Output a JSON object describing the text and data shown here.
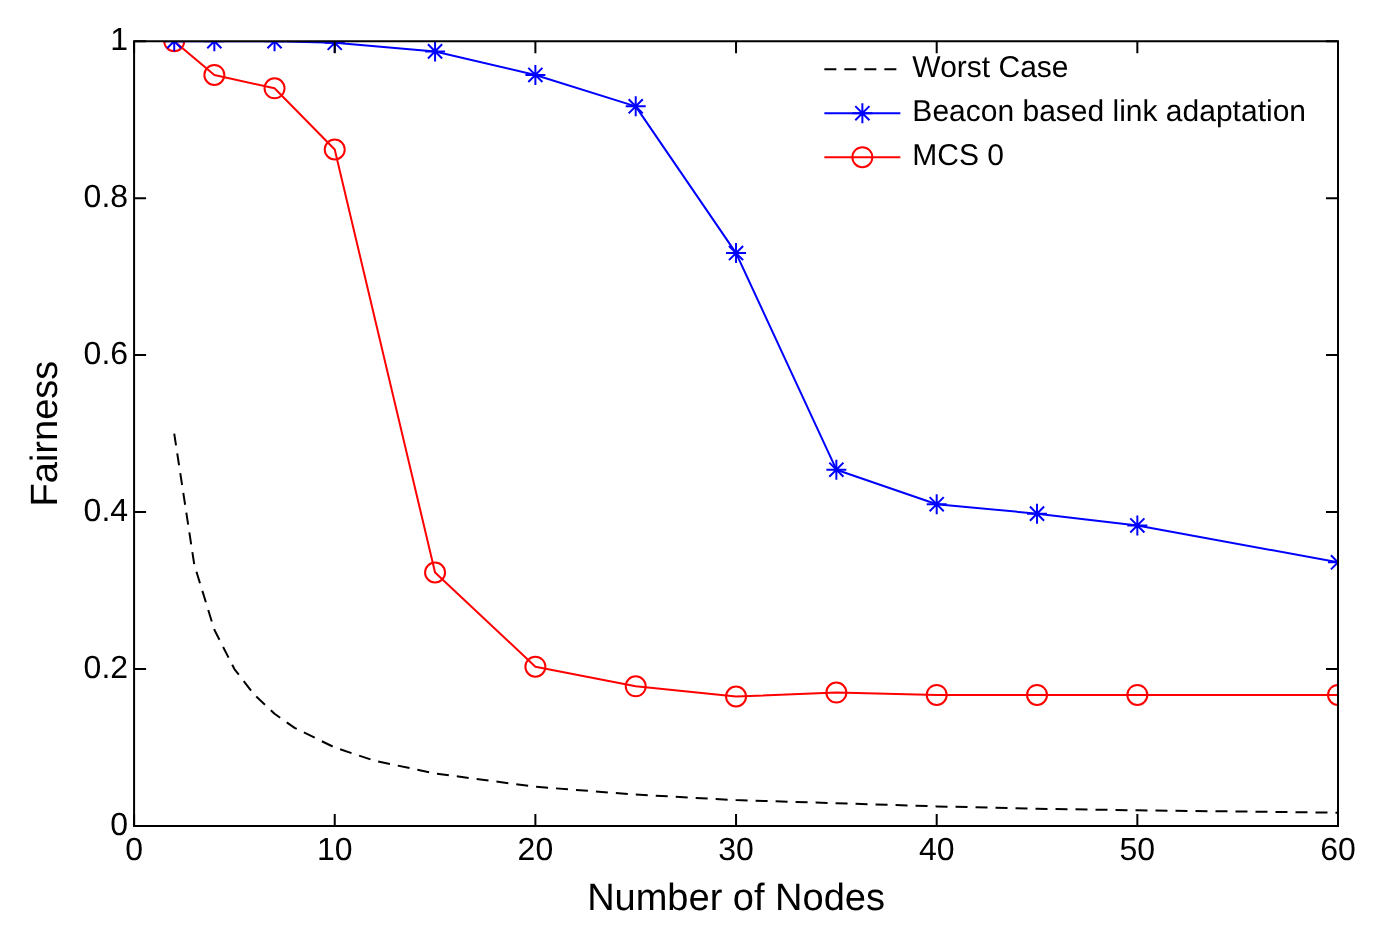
{
  "chart_data": {
    "type": "line",
    "xlabel": "Number of Nodes",
    "ylabel": "Fairness",
    "xlim": [
      0,
      60
    ],
    "xticks": [
      0,
      10,
      20,
      30,
      40,
      50,
      60
    ],
    "ylim": [
      0,
      1
    ],
    "yticks": [
      0,
      0.2,
      0.4,
      0.6,
      0.8,
      1
    ],
    "grid": false,
    "legend": "top right",
    "series": [
      {
        "name": "Worst Case",
        "color": "#000000",
        "marker": "none",
        "line_style": "dashed",
        "x": [
          2,
          3,
          4,
          5,
          6,
          7,
          8,
          10,
          12,
          15,
          20,
          25,
          30,
          35,
          40,
          45,
          50,
          60
        ],
        "values": [
          0.5,
          0.333,
          0.25,
          0.2,
          0.167,
          0.143,
          0.125,
          0.1,
          0.083,
          0.067,
          0.05,
          0.04,
          0.033,
          0.029,
          0.025,
          0.022,
          0.02,
          0.017
        ]
      },
      {
        "name": "Beacon based link adaptation",
        "color": "#0000ff",
        "marker": "cross",
        "line_style": "solid",
        "x": [
          2,
          4,
          7,
          10,
          15,
          20,
          25,
          30,
          35,
          40,
          45,
          50,
          60
        ],
        "values": [
          1,
          1,
          1,
          0.998,
          0.987,
          0.957,
          0.917,
          0.73,
          0.454,
          0.41,
          0.398,
          0.383,
          0.336
        ]
      },
      {
        "name": "MCS 0",
        "color": "#ff0000",
        "marker": "circle",
        "line_style": "solid",
        "x": [
          2,
          4,
          7,
          10,
          15,
          20,
          25,
          30,
          35,
          40,
          45,
          50,
          60
        ],
        "values": [
          1,
          0.957,
          0.94,
          0.862,
          0.323,
          0.203,
          0.178,
          0.165,
          0.17,
          0.167,
          0.167,
          0.167,
          0.167
        ]
      }
    ]
  }
}
